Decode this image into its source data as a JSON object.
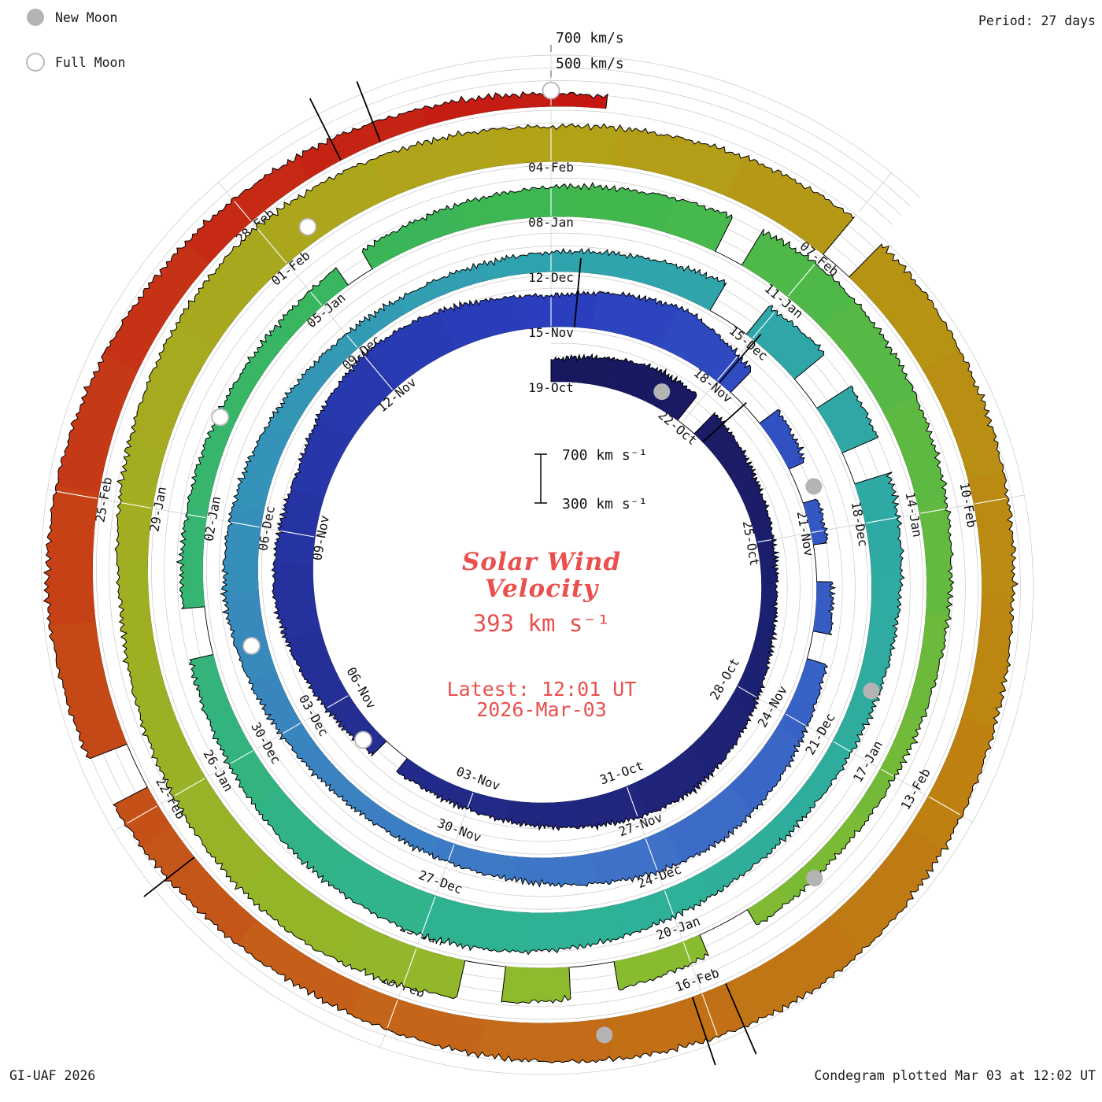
{
  "legend": {
    "new_moon": "New Moon",
    "full_moon": "Full Moon"
  },
  "period_label": "Period: 27 days",
  "credit": "GI-UAF 2026",
  "footer": "Condegram plotted Mar 03 at 12:02 UT",
  "outer_scale": {
    "v700": "700 km/s",
    "v500": "500 km/s"
  },
  "center": {
    "scale_top": "700 km s⁻¹",
    "scale_bottom": "300 km s⁻¹",
    "title_line1": "Solar Wind",
    "title_line2": "Velocity",
    "current": "393 km s⁻¹",
    "latest_line1": "Latest: 12:01 UT",
    "latest_line2": "2026-Mar-03"
  },
  "style": {
    "accent_red": "#e9504e",
    "grid_color": "#c8c8c8",
    "moon_gray": "#b4b4b4",
    "text_color": "#1a1a1a"
  },
  "chart_data": {
    "type": "area",
    "layout": "polar-spiral-condegram",
    "title": "Solar Wind Velocity",
    "units": "km/s",
    "period_days": 27,
    "start_date": "2025-10-19",
    "end_day": 135.5,
    "latest_velocity": 393,
    "latest_time": "12:01 UT 2026-Mar-03",
    "baseline_velocity": 300,
    "grid_velocities": [
      400,
      500,
      600,
      700
    ],
    "daily_velocity": [
      470,
      520,
      565,
      545,
      500,
      460,
      430,
      415,
      435,
      485,
      545,
      585,
      560,
      510,
      470,
      440,
      425,
      455,
      505,
      565,
      615,
      585,
      560,
      620,
      660,
      640,
      580,
      540,
      600,
      650,
      560,
      480,
      430,
      410,
      420,
      450,
      500,
      560,
      600,
      580,
      530,
      480,
      450,
      430,
      440,
      480,
      530,
      570,
      550,
      510,
      470,
      440,
      420,
      430,
      450,
      480,
      530,
      580,
      620,
      600,
      560,
      520,
      490,
      470,
      460,
      480,
      520,
      570,
      610,
      630,
      600,
      560,
      520,
      490,
      470,
      460,
      450,
      440,
      450,
      470,
      500,
      530,
      560,
      600,
      640,
      620,
      570,
      520,
      480,
      450,
      430,
      420,
      440,
      480,
      530,
      580,
      620,
      650,
      630,
      590,
      550,
      520,
      560,
      610,
      650,
      670,
      640,
      600,
      570,
      600,
      640,
      670,
      650,
      610,
      570,
      540,
      560,
      600,
      650,
      680,
      660,
      620,
      580,
      550,
      530,
      550,
      590,
      630,
      660,
      640,
      600,
      560,
      520,
      480,
      430,
      395
    ],
    "color_stops": [
      [
        0,
        "#17175c"
      ],
      [
        13,
        "#20267e"
      ],
      [
        27,
        "#2b3fbe"
      ],
      [
        40,
        "#3f74c8"
      ],
      [
        54,
        "#2fa3ae"
      ],
      [
        68,
        "#2fb294"
      ],
      [
        81,
        "#3cb750"
      ],
      [
        94,
        "#8cbb2e"
      ],
      [
        108,
        "#b2a218"
      ],
      [
        116,
        "#bd8410"
      ],
      [
        123,
        "#c4641a"
      ],
      [
        129,
        "#c63d16"
      ],
      [
        136,
        "#c51212"
      ]
    ],
    "gaps": [
      [
        2.9,
        3.35
      ],
      [
        16.4,
        16.9
      ],
      [
        30.3,
        31.0
      ],
      [
        31.9,
        32.5
      ],
      [
        33.2,
        33.8
      ],
      [
        34.6,
        35.05
      ],
      [
        56.3,
        56.9
      ],
      [
        57.8,
        58.3
      ],
      [
        59.0,
        59.45
      ],
      [
        73.3,
        73.9
      ],
      [
        78.4,
        78.75
      ],
      [
        83.0,
        83.35
      ],
      [
        92.2,
        92.8
      ],
      [
        93.8,
        94.3
      ],
      [
        95.0,
        95.45
      ],
      [
        111.0,
        111.35
      ],
      [
        126.2,
        126.65
      ]
    ],
    "spikes": [
      {
        "day": 3.6,
        "v": 760
      },
      {
        "day": 27.4,
        "v": 840
      },
      {
        "day": 30.05,
        "v": 800
      },
      {
        "day": 119.75,
        "v": 900
      },
      {
        "day": 120.1,
        "v": 860
      },
      {
        "day": 125.4,
        "v": 800
      },
      {
        "day": 133.0,
        "v": 840
      },
      {
        "day": 133.4,
        "v": 805
      }
    ],
    "date_labels": [
      {
        "day": 0,
        "label": "19-Oct"
      },
      {
        "day": 3,
        "label": "22-Oct"
      },
      {
        "day": 6,
        "label": "25-Oct"
      },
      {
        "day": 9,
        "label": "28-Oct"
      },
      {
        "day": 12,
        "label": "31-Oct"
      },
      {
        "day": 15,
        "label": "03-Nov"
      },
      {
        "day": 18,
        "label": "06-Nov"
      },
      {
        "day": 21,
        "label": "09-Nov"
      },
      {
        "day": 24,
        "label": "12-Nov"
      },
      {
        "day": 27,
        "label": "15-Nov"
      },
      {
        "day": 30,
        "label": "18-Nov"
      },
      {
        "day": 33,
        "label": "21-Nov"
      },
      {
        "day": 36,
        "label": "24-Nov"
      },
      {
        "day": 39,
        "label": "27-Nov"
      },
      {
        "day": 42,
        "label": "30-Nov"
      },
      {
        "day": 45,
        "label": "03-Dec"
      },
      {
        "day": 48,
        "label": "06-Dec"
      },
      {
        "day": 51,
        "label": "09-Dec"
      },
      {
        "day": 54,
        "label": "12-Dec"
      },
      {
        "day": 57,
        "label": "15-Dec"
      },
      {
        "day": 60,
        "label": "18-Dec"
      },
      {
        "day": 63,
        "label": "21-Dec"
      },
      {
        "day": 66,
        "label": "24-Dec"
      },
      {
        "day": 69,
        "label": "27-Dec"
      },
      {
        "day": 72,
        "label": "30-Dec"
      },
      {
        "day": 75,
        "label": "02-Jan"
      },
      {
        "day": 78,
        "label": "05-Jan"
      },
      {
        "day": 81,
        "label": "08-Jan"
      },
      {
        "day": 84,
        "label": "11-Jan"
      },
      {
        "day": 87,
        "label": "14-Jan"
      },
      {
        "day": 90,
        "label": "17-Jan"
      },
      {
        "day": 93,
        "label": "20-Jan"
      },
      {
        "day": 96,
        "label": "23-Jan"
      },
      {
        "day": 99,
        "label": "26-Jan"
      },
      {
        "day": 102,
        "label": "29-Jan"
      },
      {
        "day": 105,
        "label": "01-Feb"
      },
      {
        "day": 108,
        "label": "04-Feb"
      },
      {
        "day": 111,
        "label": "07-Feb"
      },
      {
        "day": 114,
        "label": "10-Feb"
      },
      {
        "day": 117,
        "label": "13-Feb"
      },
      {
        "day": 120,
        "label": "16-Feb"
      },
      {
        "day": 123,
        "label": "19-Feb"
      },
      {
        "day": 126,
        "label": "22-Feb"
      },
      {
        "day": 129,
        "label": "25-Feb"
      },
      {
        "day": 132,
        "label": "28-Feb"
      }
    ],
    "moons": {
      "new_moons": [
        {
          "day": 2.3,
          "date": "2025-10-21"
        },
        {
          "day": 32.3,
          "date": "2025-11-20"
        },
        {
          "day": 62.2,
          "date": "2025-12-20"
        },
        {
          "day": 91.4,
          "date": "2026-01-18"
        },
        {
          "day": 121.0,
          "date": "2026-02-17"
        }
      ],
      "full_moons": [
        {
          "day": 17.2,
          "date": "2025-11-05"
        },
        {
          "day": 46.3,
          "date": "2025-12-04"
        },
        {
          "day": 76.2,
          "date": "2026-01-03"
        },
        {
          "day": 105.4,
          "date": "2026-02-01"
        },
        {
          "day": 135.0,
          "date": "2026-03-03"
        }
      ]
    }
  }
}
